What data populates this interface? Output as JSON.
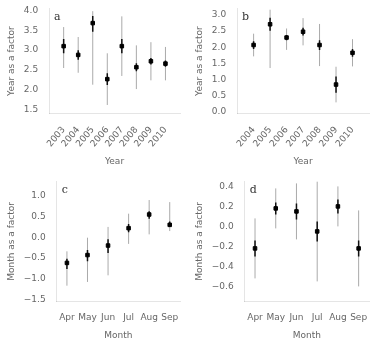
{
  "chart_data": [
    {
      "type": "scatter",
      "annotations": [
        "a"
      ],
      "xlabel": "Year",
      "ylabel": "Year as a factor",
      "x": [
        2003,
        2004,
        2005,
        2006,
        2007,
        2008,
        2009,
        2010
      ],
      "values": [
        3.1,
        2.88,
        3.68,
        2.27,
        3.1,
        2.57,
        2.72,
        2.66
      ],
      "color": "#000000",
      "marker": "square",
      "error_bars": [
        {
          "color": "#aaaaaa",
          "lo": [
            0.55,
            0.45,
            1.55,
            0.65,
            0.75,
            0.55,
            0.48,
            0.42
          ],
          "hi": [
            0.48,
            0.45,
            0.3,
            0.65,
            0.75,
            0.55,
            0.48,
            0.42
          ]
        },
        {
          "color": "#111111",
          "lo": [
            0.18,
            0.12,
            0.22,
            0.15,
            0.18,
            0.1,
            0.08,
            0.08
          ],
          "hi": [
            0.18,
            0.12,
            0.18,
            0.15,
            0.18,
            0.1,
            0.08,
            0.08
          ]
        }
      ],
      "xlim": [
        2002,
        2011
      ],
      "xticks": [
        2003,
        2004,
        2005,
        2006,
        2007,
        2008,
        2009,
        2010
      ],
      "ylim": [
        1.4,
        4.05
      ],
      "yticks": [
        1.5,
        {
          "value": 2.0,
          "label": "2.0"
        },
        2.5,
        {
          "value": 3.0,
          "label": "3.0"
        },
        3.5,
        {
          "value": 4.0,
          "label": "4.0"
        }
      ],
      "grid": false
    },
    {
      "type": "scatter",
      "annotations": [
        "b"
      ],
      "xlabel": "Year",
      "ylabel": "Year as a factor",
      "x": [
        2004,
        2005,
        2006,
        2007,
        2008,
        2009,
        2010
      ],
      "values": [
        2.07,
        2.71,
        2.3,
        2.48,
        2.07,
        0.85,
        1.83
      ],
      "color": "#000000",
      "marker": "square",
      "error_bars": [
        {
          "color": "#aaaaaa",
          "lo": [
            0.35,
            1.35,
            0.38,
            0.42,
            0.65,
            0.55,
            0.42
          ],
          "hi": [
            0.35,
            0.45,
            0.28,
            0.42,
            0.65,
            0.55,
            0.42
          ]
        },
        {
          "color": "#111111",
          "lo": [
            0.12,
            0.2,
            0.08,
            0.12,
            0.15,
            0.25,
            0.12
          ],
          "hi": [
            0.12,
            0.2,
            0.08,
            0.12,
            0.15,
            0.25,
            0.12
          ]
        }
      ],
      "xlim": [
        2003,
        2011
      ],
      "xticks": [
        2004,
        2005,
        2006,
        2007,
        2008,
        2009,
        2010
      ],
      "ylim": [
        -0.05,
        3.2
      ],
      "yticks": [
        {
          "value": 0.0,
          "label": "0.0"
        },
        0.5,
        {
          "value": 1.0,
          "label": "1.0"
        },
        1.5,
        {
          "value": 2.0,
          "label": "2.0"
        },
        2.5,
        {
          "value": 3.0,
          "label": "3.0"
        }
      ],
      "grid": false
    },
    {
      "type": "scatter",
      "annotations": [
        "c"
      ],
      "xlabel": "Month",
      "ylabel": "Month as a factor",
      "categories": [
        "Apr",
        "May",
        "Jun",
        "Jul",
        "Aug",
        "Sep"
      ],
      "values": [
        -0.62,
        -0.43,
        -0.2,
        0.22,
        0.55,
        0.3
      ],
      "color": "#000000",
      "marker": "square",
      "error_bars": [
        {
          "color": "#aaaaaa",
          "lo": [
            0.55,
            0.65,
            0.72,
            0.38,
            0.48,
            0.15
          ],
          "hi": [
            0.28,
            0.42,
            0.45,
            0.35,
            0.35,
            0.55
          ]
        },
        {
          "color": "#111111",
          "lo": [
            0.15,
            0.15,
            0.18,
            0.1,
            0.1,
            0.05
          ],
          "hi": [
            0.1,
            0.12,
            0.15,
            0.1,
            0.08,
            0.08
          ]
        }
      ],
      "ylim": [
        -1.55,
        1.35
      ],
      "yticks": [
        {
          "value": -1.5,
          "label": "−1.5"
        },
        {
          "value": -1.0,
          "label": "−1.0"
        },
        {
          "value": -0.5,
          "label": "−0.5"
        },
        {
          "value": 0.0,
          "label": "0.0"
        },
        0.5,
        {
          "value": 1.0,
          "label": "1.0"
        }
      ],
      "grid": false
    },
    {
      "type": "scatter",
      "annotations": [
        "d"
      ],
      "xlabel": "Month",
      "ylabel": "Month as a factor",
      "categories": [
        "Apr",
        "May",
        "Jun",
        "Jul",
        "Aug",
        "Sep"
      ],
      "values": [
        -0.22,
        0.18,
        0.15,
        -0.05,
        0.2,
        -0.22
      ],
      "color": "#000000",
      "marker": "square",
      "error_bars": [
        {
          "color": "#aaaaaa",
          "lo": [
            0.3,
            0.2,
            0.28,
            0.5,
            0.2,
            0.38
          ],
          "hi": [
            0.3,
            0.2,
            0.28,
            0.5,
            0.2,
            0.38
          ]
        },
        {
          "color": "#111111",
          "lo": [
            0.08,
            0.06,
            0.08,
            0.1,
            0.07,
            0.08
          ],
          "hi": [
            0.08,
            0.06,
            0.08,
            0.1,
            0.07,
            0.08
          ]
        }
      ],
      "ylim": [
        -0.75,
        0.45
      ],
      "yticks": [
        {
          "value": -0.6,
          "label": "−0.6"
        },
        {
          "value": -0.4,
          "label": "−0.4"
        },
        {
          "value": -0.2,
          "label": "−0.2"
        },
        {
          "value": 0.0,
          "label": "0.0"
        },
        0.2,
        0.4
      ],
      "grid": false
    }
  ]
}
